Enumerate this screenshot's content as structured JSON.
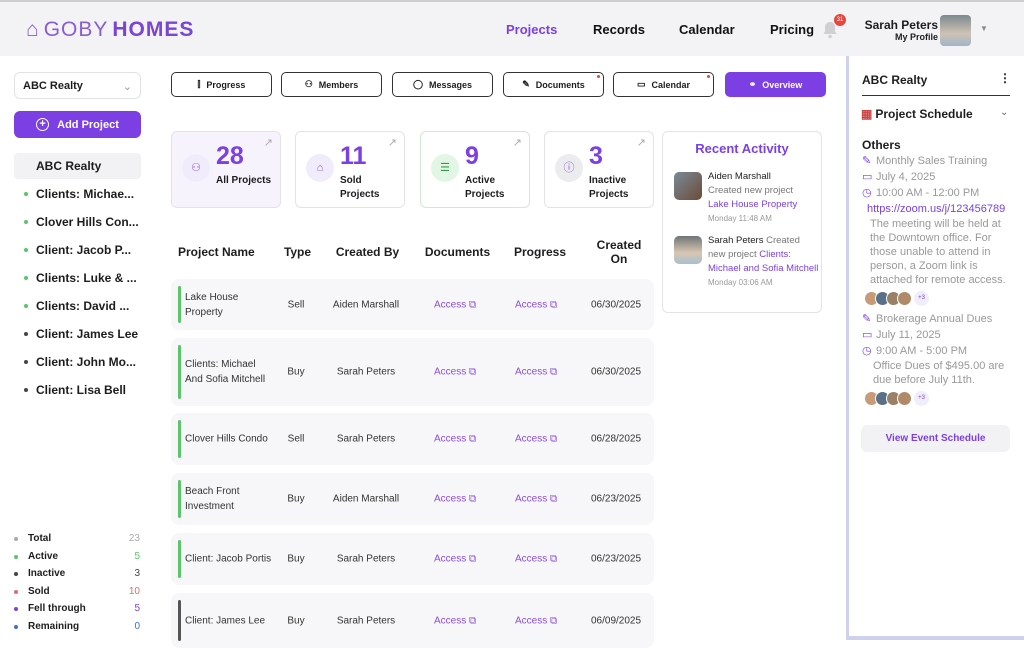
{
  "header": {
    "brand_light": "GOBY",
    "brand_bold": "HOMES",
    "nav": [
      "Projects",
      "Records",
      "Calendar",
      "Pricing"
    ],
    "active_nav": "Projects",
    "notification_count": "31",
    "user_name": "Sarah Peters",
    "profile_label": "My Profile"
  },
  "sidebar": {
    "org_select": "ABC Realty",
    "add_project": "Add Project",
    "items": [
      {
        "label": "ABC Realty",
        "status": "none"
      },
      {
        "label": "Clients: Michae...",
        "status": "active"
      },
      {
        "label": "Clover Hills Con...",
        "status": "active"
      },
      {
        "label": "Client: Jacob P...",
        "status": "active"
      },
      {
        "label": "Clients: Luke & ...",
        "status": "active"
      },
      {
        "label": "Clients: David ...",
        "status": "active"
      },
      {
        "label": "Client: James Lee",
        "status": "inactive"
      },
      {
        "label": "Client: John Mo...",
        "status": "inactive"
      },
      {
        "label": "Client: Lisa Bell",
        "status": "inactive"
      }
    ],
    "stats": [
      {
        "label": "Total",
        "value": "23",
        "color": "#aaaaaa"
      },
      {
        "label": "Active",
        "value": "5",
        "color": "#5cc46b"
      },
      {
        "label": "Inactive",
        "value": "3",
        "color": "#444444"
      },
      {
        "label": "Sold",
        "value": "10",
        "color": "#e06a6a"
      },
      {
        "label": "Fell through",
        "value": "5",
        "color": "#7b3fe4"
      },
      {
        "label": "Remaining",
        "value": "0",
        "color": "#3b6fd8"
      }
    ]
  },
  "toolbar": {
    "buttons": [
      "Progress",
      "Members",
      "Messages",
      "Documents",
      "Calendar",
      "Overview"
    ]
  },
  "cards": [
    {
      "value": "28",
      "label": "All Projects"
    },
    {
      "value": "11",
      "label": "Sold Projects"
    },
    {
      "value": "9",
      "label": "Active Projects"
    },
    {
      "value": "3",
      "label": "Inactive Projects"
    }
  ],
  "table": {
    "headers": [
      "Project Name",
      "Type",
      "Created By",
      "Documents",
      "Progress",
      "Created On"
    ],
    "rows": [
      {
        "name": "Lake House Property",
        "type": "Sell",
        "created_by": "Aiden Marshall",
        "documents": "Access",
        "progress": "Access",
        "date": "06/30/2025",
        "status": "active"
      },
      {
        "name": "Clients: Michael And Sofia Mitchell",
        "type": "Buy",
        "created_by": "Sarah Peters",
        "documents": "Access",
        "progress": "Access",
        "date": "06/30/2025",
        "status": "active"
      },
      {
        "name": "Clover Hills Condo",
        "type": "Sell",
        "created_by": "Sarah Peters",
        "documents": "Access",
        "progress": "Access",
        "date": "06/28/2025",
        "status": "active"
      },
      {
        "name": "Beach Front Investment",
        "type": "Buy",
        "created_by": "Aiden Marshall",
        "documents": "Access",
        "progress": "Access",
        "date": "06/23/2025",
        "status": "active"
      },
      {
        "name": "Client: Jacob Portis",
        "type": "Buy",
        "created_by": "Sarah Peters",
        "documents": "Access",
        "progress": "Access",
        "date": "06/23/2025",
        "status": "active"
      },
      {
        "name": "Client: James Lee",
        "type": "Buy",
        "created_by": "Sarah Peters",
        "documents": "Access",
        "progress": "Access",
        "date": "06/09/2025",
        "status": "inactive"
      }
    ]
  },
  "activity": {
    "title": "Recent Activity",
    "items": [
      {
        "user": "Aiden Marshall",
        "action": "Created new project",
        "project": "Lake House Property",
        "time": "Monday 11:48 AM"
      },
      {
        "user": "Sarah Peters",
        "action": "Created new project",
        "project": "Clients: Michael and Sofia Mitchell",
        "time": "Monday 03:06 AM"
      }
    ]
  },
  "right": {
    "org": "ABC Realty",
    "schedule_title": "Project Schedule",
    "section": "Others",
    "events": [
      {
        "title": "Monthly Sales Training",
        "date": "July 4, 2025",
        "time": "10:00 AM - 12:00 PM",
        "link": "https://zoom.us/j/123456789",
        "note": "The meeting will be held at the Downtown office. For those unable to attend in person, a Zoom link is attached for remote access.",
        "more": "+3"
      },
      {
        "title": "Brokerage Annual Dues",
        "date": "July 11, 2025",
        "time": "9:00 AM - 5:00 PM",
        "note": "Office Dues of $495.00 are due before July 11th.",
        "more": "+3"
      }
    ],
    "view_button": "View Event Schedule"
  }
}
